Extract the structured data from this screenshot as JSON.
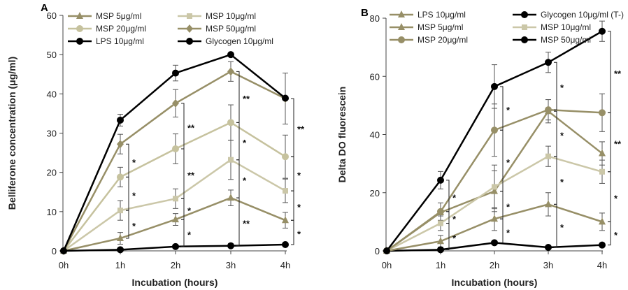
{
  "chart_data": [
    {
      "type": "line",
      "panel_label": "A",
      "xlabel": "Incubation (hours)",
      "ylabel": "Belliferone concentration (μg/ml)",
      "categories": [
        "0h",
        "1h",
        "2h",
        "3h",
        "4h"
      ],
      "ylim": [
        0,
        60
      ],
      "yticks": [
        0,
        10,
        20,
        30,
        40,
        50,
        60
      ],
      "grid": false,
      "legend": "top",
      "series": [
        {
          "name": "MSP 5μg/ml",
          "color": "#978f67",
          "marker": "triangle",
          "values": [
            0,
            3.2,
            8.0,
            13.5,
            7.8
          ],
          "errors": [
            0,
            1.5,
            1.5,
            2.0,
            2.0
          ]
        },
        {
          "name": "MSP 10μg/ml",
          "color": "#cbc7a8",
          "marker": "square",
          "values": [
            0,
            10.3,
            13.3,
            23.2,
            15.3
          ],
          "errors": [
            0,
            2.5,
            2.5,
            5.0,
            3.0
          ]
        },
        {
          "name": "MSP 20μg/ml",
          "color": "#c6c29e",
          "marker": "circle",
          "values": [
            0,
            18.8,
            26.0,
            32.7,
            24.0
          ],
          "errors": [
            0,
            2.5,
            3.8,
            4.5,
            5.5
          ]
        },
        {
          "name": "MSP 50μg/ml",
          "color": "#978f67",
          "marker": "diamond",
          "values": [
            0,
            27.2,
            37.6,
            45.7,
            38.8
          ],
          "errors": [
            0,
            2.5,
            3.5,
            2.5,
            6.5
          ]
        },
        {
          "name": "LPS 10μg/ml",
          "color": "#000000",
          "marker": "circle",
          "values": [
            0,
            33.3,
            45.3,
            50.0,
            38.9
          ],
          "errors": [
            0,
            1.5,
            2.0,
            0,
            0
          ]
        },
        {
          "name": "Glycogen 10μg/ml",
          "color": "#000000",
          "marker": "circle",
          "values": [
            0,
            0.3,
            1.1,
            1.3,
            1.6
          ],
          "errors": [
            0,
            0,
            0,
            0,
            0
          ]
        }
      ],
      "annotations": [
        {
          "x": "1h",
          "from": 3.2,
          "to": 10.3,
          "text": "*"
        },
        {
          "x": "1h",
          "from": 10.3,
          "to": 18.8,
          "text": "*"
        },
        {
          "x": "1h",
          "from": 18.8,
          "to": 27.2,
          "text": "*"
        },
        {
          "x": "2h",
          "from": 1.1,
          "to": 8.0,
          "text": "*"
        },
        {
          "x": "2h",
          "from": 8.0,
          "to": 13.3,
          "text": "*"
        },
        {
          "x": "2h",
          "from": 13.3,
          "to": 26.0,
          "text": "**"
        },
        {
          "x": "2h",
          "from": 26.0,
          "to": 37.6,
          "text": "**"
        },
        {
          "x": "3h",
          "from": 1.3,
          "to": 13.5,
          "text": "**"
        },
        {
          "x": "3h",
          "from": 13.5,
          "to": 23.2,
          "text": "*"
        },
        {
          "x": "3h",
          "from": 23.2,
          "to": 32.7,
          "text": "*"
        },
        {
          "x": "3h",
          "from": 32.7,
          "to": 45.7,
          "text": "**"
        },
        {
          "x": "4h",
          "from": 1.6,
          "to": 7.8,
          "text": "*"
        },
        {
          "x": "4h",
          "from": 7.8,
          "to": 15.3,
          "text": "*"
        },
        {
          "x": "4h",
          "from": 15.3,
          "to": 24.0,
          "text": "*"
        },
        {
          "x": "4h",
          "from": 24.0,
          "to": 38.8,
          "text": "**"
        }
      ]
    },
    {
      "type": "line",
      "panel_label": "B",
      "xlabel": "Incubation (hours)",
      "ylabel": "Delta DO fluorescein",
      "categories": [
        "0h",
        "1h",
        "2h",
        "3h",
        "4h"
      ],
      "ylim": [
        0,
        80
      ],
      "yticks": [
        0,
        20,
        40,
        60,
        80
      ],
      "grid": false,
      "legend": "top",
      "series": [
        {
          "name": "LPS 10μg/ml",
          "color": "#978f67",
          "marker": "triangle",
          "values": [
            0,
            13.2,
            20.5,
            48.0,
            33.5
          ],
          "errors": [
            0,
            0,
            7.0,
            4.0,
            4.0
          ]
        },
        {
          "name": "Glycogen 10μg/ml (T-)",
          "color": "#000000",
          "marker": "circle",
          "values": [
            0,
            0.4,
            2.8,
            1.2,
            2.0
          ],
          "errors": [
            0,
            0,
            0,
            0,
            0
          ]
        },
        {
          "name": "MSP 5μg/ml",
          "color": "#978f67",
          "marker": "triangle",
          "values": [
            0,
            3.3,
            11.0,
            16.0,
            10.0
          ],
          "errors": [
            0,
            2.0,
            4.0,
            4.0,
            3.0
          ]
        },
        {
          "name": "MSP 10μg/ml",
          "color": "#cbc7a8",
          "marker": "square",
          "values": [
            0,
            9.5,
            22.0,
            32.5,
            27.2
          ],
          "errors": [
            0,
            2.5,
            7.5,
            3.5,
            4.0
          ]
        },
        {
          "name": "MSP 20μg/ml",
          "color": "#978f67",
          "marker": "circle",
          "values": [
            0,
            13.5,
            41.5,
            48.5,
            47.5
          ],
          "errors": [
            0,
            3.0,
            9.0,
            3.5,
            6.5
          ]
        },
        {
          "name": "MSP 50μg/ml",
          "color": "#000000",
          "marker": "circle",
          "values": [
            0,
            24.3,
            56.5,
            64.8,
            75.5
          ],
          "errors": [
            0,
            3.0,
            7.5,
            3.5,
            3.5
          ]
        }
      ],
      "annotations": [
        {
          "x": "1h",
          "from": 0.4,
          "to": 9.5,
          "text": "*"
        },
        {
          "x": "1h",
          "from": 9.5,
          "to": 13.5,
          "text": "*"
        },
        {
          "x": "1h",
          "from": 13.5,
          "to": 24.3,
          "text": "*"
        },
        {
          "x": "2h",
          "from": 2.8,
          "to": 11.0,
          "text": "*"
        },
        {
          "x": "2h",
          "from": 11.0,
          "to": 20.5,
          "text": "*"
        },
        {
          "x": "2h",
          "from": 20.5,
          "to": 41.5,
          "text": "*"
        },
        {
          "x": "2h",
          "from": 41.5,
          "to": 56.5,
          "text": "*"
        },
        {
          "x": "3h",
          "from": 1.2,
          "to": 16.0,
          "text": "*"
        },
        {
          "x": "3h",
          "from": 16.0,
          "to": 32.5,
          "text": "*"
        },
        {
          "x": "3h",
          "from": 32.5,
          "to": 48.0,
          "text": "*"
        },
        {
          "x": "3h",
          "from": 48.5,
          "to": 64.8,
          "text": "*"
        },
        {
          "x": "4h",
          "from": 2.0,
          "to": 10.0,
          "text": "*"
        },
        {
          "x": "4h",
          "from": 10.0,
          "to": 27.2,
          "text": "*"
        },
        {
          "x": "4h",
          "from": 27.2,
          "to": 47.5,
          "text": "**"
        },
        {
          "x": "4h",
          "from": 47.5,
          "to": 75.5,
          "text": "**"
        }
      ]
    }
  ]
}
